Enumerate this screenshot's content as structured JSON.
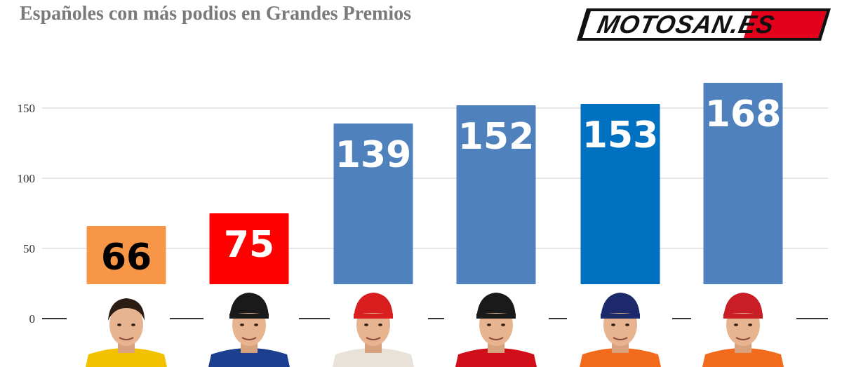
{
  "header": {
    "title": "Españoles con más podios en Grandes Premios",
    "logo_text": "MOTOSAN.ES"
  },
  "colors": {
    "title": "#7a7a7a",
    "gridline": "#cccccc",
    "logo_red": "#e2001a"
  },
  "chart_data": {
    "type": "bar",
    "title": "Españoles con más podios en Grandes Premios",
    "xlabel": "",
    "ylabel": "",
    "ylim": [
      0,
      175
    ],
    "yticks": [
      0,
      50,
      100,
      150
    ],
    "grid": true,
    "categories": [
      "",
      "",
      "",
      "",
      "",
      ""
    ],
    "values": [
      66,
      75,
      139,
      152,
      153,
      168
    ],
    "data_labels": [
      "66",
      "75",
      "139",
      "152",
      "153",
      "168"
    ],
    "bar_colors": [
      "#f79646",
      "#ff0000",
      "#4f81bd",
      "#4f81bd",
      "#0070c0",
      "#4f81bd"
    ],
    "label_colors": [
      "#000000",
      "#ffffff",
      "#ffffff",
      "#ffffff",
      "#ffffff",
      "#ffffff"
    ]
  },
  "portraits": [
    {
      "icon": "rider-portrait-1",
      "helmet": "none",
      "suit": "#f2c200"
    },
    {
      "icon": "rider-portrait-2",
      "helmet": "#1a1a1a",
      "suit": "#1d3f8f"
    },
    {
      "icon": "rider-portrait-3",
      "helmet": "#d81e1e",
      "suit": "#e8e2d8"
    },
    {
      "icon": "rider-portrait-4",
      "helmet": "#1a1a1a",
      "suit": "#d10f1b"
    },
    {
      "icon": "rider-portrait-5",
      "helmet": "#1c2a6b",
      "suit": "#f26b1d"
    },
    {
      "icon": "rider-portrait-6",
      "helmet": "#c91e26",
      "suit": "#f26b1d"
    }
  ]
}
